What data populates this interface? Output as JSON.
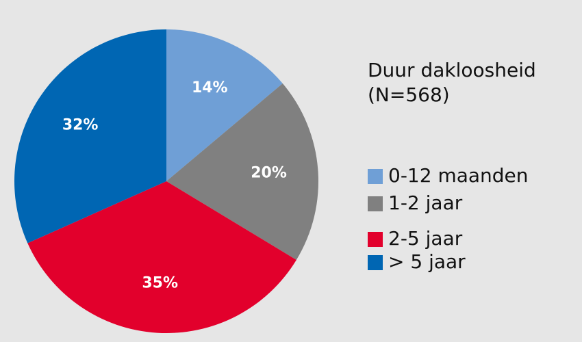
{
  "chart_data": {
    "type": "pie",
    "title": "Duur dakloosheid",
    "subtitle": "(N=568)",
    "categories": [
      "0-12 maanden",
      "1-2 jaar",
      "2-5 jaar",
      "> 5 jaar"
    ],
    "values": [
      14,
      20,
      35,
      32
    ],
    "value_labels": [
      "14%",
      "20%",
      "35%",
      "32%"
    ],
    "colors": [
      "#6f9fd6",
      "#808080",
      "#e2002c",
      "#0066b3"
    ]
  }
}
